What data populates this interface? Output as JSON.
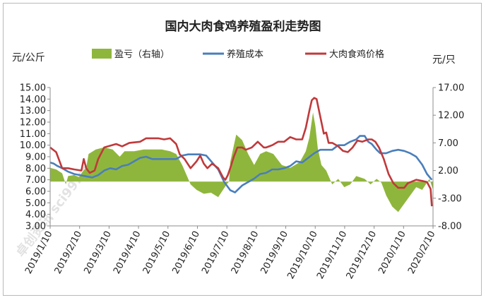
{
  "chart_data": {
    "type": "line",
    "title": "国内大肉食鸡养殖盈利走势图",
    "left_axis_label": "元/公斤",
    "right_axis_label": "元/只",
    "y_left": {
      "min": 3.0,
      "max": 15.0,
      "ticks": [
        3.0,
        4.0,
        5.0,
        6.0,
        7.0,
        8.0,
        9.0,
        10.0,
        11.0,
        12.0,
        13.0,
        14.0,
        15.0
      ]
    },
    "y_right": {
      "min": -8.0,
      "max": 17.0,
      "ticks": [
        -8.0,
        -3.0,
        2.0,
        7.0,
        12.0,
        17.0
      ]
    },
    "x_ticks": [
      "2019/1/10",
      "2019/2/10",
      "2019/3/10",
      "2019/4/10",
      "2019/5/10",
      "2019/6/10",
      "2019/7/10",
      "2019/8/10",
      "2019/9/10",
      "2019/10/10",
      "2019/11/10",
      "2019/12/10",
      "2020/1/10",
      "2020/2/10"
    ],
    "legend": [
      "盈亏（右轴）",
      "养殖成本",
      "大肉食鸡价格"
    ],
    "legend_position": "top",
    "colors": {
      "profit": "#8fb63c",
      "cost": "#4a7ebb",
      "price": "#c0393b"
    },
    "grid": false,
    "watermark": "卓创资讯 sci99.com",
    "series": [
      {
        "name": "盈亏（右轴）",
        "axis": "right",
        "style": "area",
        "points": [
          [
            0,
            2.5
          ],
          [
            5,
            2.2
          ],
          [
            10,
            1.5
          ],
          [
            13,
            -0.5
          ],
          [
            15,
            1.0
          ],
          [
            20,
            1.2
          ],
          [
            24,
            0.8
          ],
          [
            27,
            1.8
          ],
          [
            30,
            2.5
          ],
          [
            32,
            5.0
          ],
          [
            38,
            5.8
          ],
          [
            45,
            6.2
          ],
          [
            52,
            5.8
          ],
          [
            58,
            4.5
          ],
          [
            62,
            5.5
          ],
          [
            70,
            5.5
          ],
          [
            78,
            5.8
          ],
          [
            85,
            5.8
          ],
          [
            93,
            5.8
          ],
          [
            100,
            5.5
          ],
          [
            105,
            5.0
          ],
          [
            110,
            3.0
          ],
          [
            114,
            1.0
          ],
          [
            117,
            -0.5
          ],
          [
            122,
            -1.5
          ],
          [
            128,
            -2.2
          ],
          [
            134,
            -2.0
          ],
          [
            140,
            -2.8
          ],
          [
            144,
            -1.5
          ],
          [
            147,
            -0.5
          ],
          [
            149,
            0.0
          ],
          [
            150,
            3.5
          ],
          [
            155,
            8.5
          ],
          [
            160,
            7.5
          ],
          [
            165,
            5.0
          ],
          [
            170,
            3.0
          ],
          [
            175,
            5.0
          ],
          [
            180,
            5.5
          ],
          [
            186,
            5.0
          ],
          [
            193,
            3.0
          ],
          [
            200,
            2.5
          ],
          [
            208,
            3.5
          ],
          [
            213,
            5.5
          ],
          [
            216,
            8.0
          ],
          [
            219,
            12.5
          ],
          [
            221,
            10.0
          ],
          [
            223,
            6.0
          ],
          [
            226,
            3.0
          ],
          [
            230,
            2.0
          ],
          [
            235,
            -0.5
          ],
          [
            240,
            0.5
          ],
          [
            245,
            -1.0
          ],
          [
            250,
            -0.5
          ],
          [
            255,
            1.0
          ],
          [
            262,
            0.5
          ],
          [
            267,
            -0.5
          ],
          [
            272,
            0.5
          ],
          [
            276,
            -0.2
          ],
          [
            280,
            -2.5
          ],
          [
            285,
            -4.5
          ],
          [
            290,
            -5.5
          ],
          [
            295,
            -4.0
          ],
          [
            300,
            -2.5
          ],
          [
            305,
            -1.0
          ],
          [
            310,
            -1.5
          ],
          [
            316,
            0.5
          ],
          [
            319,
            -1.5
          ]
        ]
      },
      {
        "name": "养殖成本",
        "axis": "left",
        "style": "line",
        "points": [
          [
            0,
            8.5
          ],
          [
            3,
            8.4
          ],
          [
            6,
            8.2
          ],
          [
            10,
            8.0
          ],
          [
            15,
            7.7
          ],
          [
            20,
            7.5
          ],
          [
            25,
            7.4
          ],
          [
            30,
            7.3
          ],
          [
            35,
            7.2
          ],
          [
            40,
            7.4
          ],
          [
            45,
            7.8
          ],
          [
            50,
            8.0
          ],
          [
            55,
            7.9
          ],
          [
            60,
            8.2
          ],
          [
            65,
            8.3
          ],
          [
            70,
            8.6
          ],
          [
            75,
            8.9
          ],
          [
            80,
            9.0
          ],
          [
            85,
            8.8
          ],
          [
            90,
            8.8
          ],
          [
            95,
            8.8
          ],
          [
            100,
            8.8
          ],
          [
            105,
            8.8
          ],
          [
            110,
            9.1
          ],
          [
            115,
            9.2
          ],
          [
            120,
            9.2
          ],
          [
            125,
            9.2
          ],
          [
            130,
            9.1
          ],
          [
            135,
            8.5
          ],
          [
            140,
            7.9
          ],
          [
            145,
            6.8
          ],
          [
            150,
            6.1
          ],
          [
            154,
            5.9
          ],
          [
            160,
            6.5
          ],
          [
            165,
            6.8
          ],
          [
            170,
            7.1
          ],
          [
            175,
            7.5
          ],
          [
            180,
            7.6
          ],
          [
            185,
            7.9
          ],
          [
            190,
            7.9
          ],
          [
            195,
            8.0
          ],
          [
            200,
            8.2
          ],
          [
            205,
            8.6
          ],
          [
            210,
            8.5
          ],
          [
            215,
            8.9
          ],
          [
            220,
            9.3
          ],
          [
            225,
            9.6
          ],
          [
            230,
            9.6
          ],
          [
            235,
            9.6
          ],
          [
            240,
            10.0
          ],
          [
            245,
            10.0
          ],
          [
            250,
            10.3
          ],
          [
            255,
            10.5
          ],
          [
            258,
            10.8
          ],
          [
            262,
            10.8
          ],
          [
            265,
            10.3
          ],
          [
            268,
            10.1
          ],
          [
            272,
            9.6
          ],
          [
            275,
            9.3
          ],
          [
            280,
            9.3
          ],
          [
            285,
            9.5
          ],
          [
            290,
            9.6
          ],
          [
            295,
            9.5
          ],
          [
            300,
            9.3
          ],
          [
            305,
            9.0
          ],
          [
            310,
            8.3
          ],
          [
            314,
            7.5
          ],
          [
            318,
            7.0
          ]
        ]
      },
      {
        "name": "大肉食鸡价格",
        "axis": "left",
        "style": "line",
        "points": [
          [
            0,
            9.8
          ],
          [
            5,
            9.4
          ],
          [
            10,
            8.0
          ],
          [
            15,
            8.0
          ],
          [
            20,
            7.9
          ],
          [
            26,
            7.8
          ],
          [
            28,
            8.8
          ],
          [
            30,
            8.0
          ],
          [
            33,
            7.6
          ],
          [
            37,
            7.8
          ],
          [
            40,
            8.8
          ],
          [
            45,
            9.8
          ],
          [
            55,
            10.1
          ],
          [
            60,
            9.9
          ],
          [
            66,
            10.2
          ],
          [
            75,
            10.3
          ],
          [
            80,
            10.6
          ],
          [
            85,
            10.6
          ],
          [
            90,
            10.6
          ],
          [
            95,
            10.5
          ],
          [
            100,
            10.6
          ],
          [
            105,
            10.1
          ],
          [
            108,
            9.2
          ],
          [
            112,
            8.8
          ],
          [
            117,
            8.0
          ],
          [
            122,
            8.6
          ],
          [
            125,
            9.1
          ],
          [
            128,
            8.4
          ],
          [
            131,
            8.0
          ],
          [
            135,
            8.4
          ],
          [
            140,
            8.0
          ],
          [
            144,
            7.2
          ],
          [
            146,
            7.0
          ],
          [
            148,
            7.4
          ],
          [
            150,
            8.0
          ],
          [
            153,
            9.0
          ],
          [
            156,
            9.8
          ],
          [
            160,
            9.8
          ],
          [
            163,
            9.6
          ],
          [
            168,
            9.8
          ],
          [
            173,
            10.3
          ],
          [
            178,
            9.8
          ],
          [
            180,
            9.8
          ],
          [
            185,
            10.0
          ],
          [
            190,
            10.3
          ],
          [
            195,
            10.3
          ],
          [
            200,
            10.7
          ],
          [
            205,
            10.5
          ],
          [
            210,
            10.5
          ],
          [
            213,
            11.5
          ],
          [
            216,
            13.0
          ],
          [
            218,
            13.9
          ],
          [
            220,
            14.1
          ],
          [
            222,
            14.0
          ],
          [
            225,
            12.5
          ],
          [
            228,
            11.0
          ],
          [
            230,
            11.1
          ],
          [
            232,
            10.2
          ],
          [
            235,
            10.2
          ],
          [
            240,
            9.9
          ],
          [
            244,
            9.5
          ],
          [
            248,
            9.4
          ],
          [
            252,
            9.8
          ],
          [
            256,
            10.4
          ],
          [
            260,
            10.3
          ],
          [
            265,
            10.5
          ],
          [
            268,
            10.5
          ],
          [
            271,
            10.3
          ],
          [
            274,
            9.8
          ],
          [
            278,
            8.8
          ],
          [
            282,
            7.5
          ],
          [
            286,
            6.7
          ],
          [
            290,
            6.3
          ],
          [
            295,
            6.3
          ],
          [
            298,
            6.7
          ],
          [
            305,
            7.0
          ],
          [
            310,
            6.9
          ],
          [
            314,
            6.8
          ],
          [
            317,
            6.2
          ],
          [
            318,
            4.7
          ]
        ]
      }
    ]
  }
}
